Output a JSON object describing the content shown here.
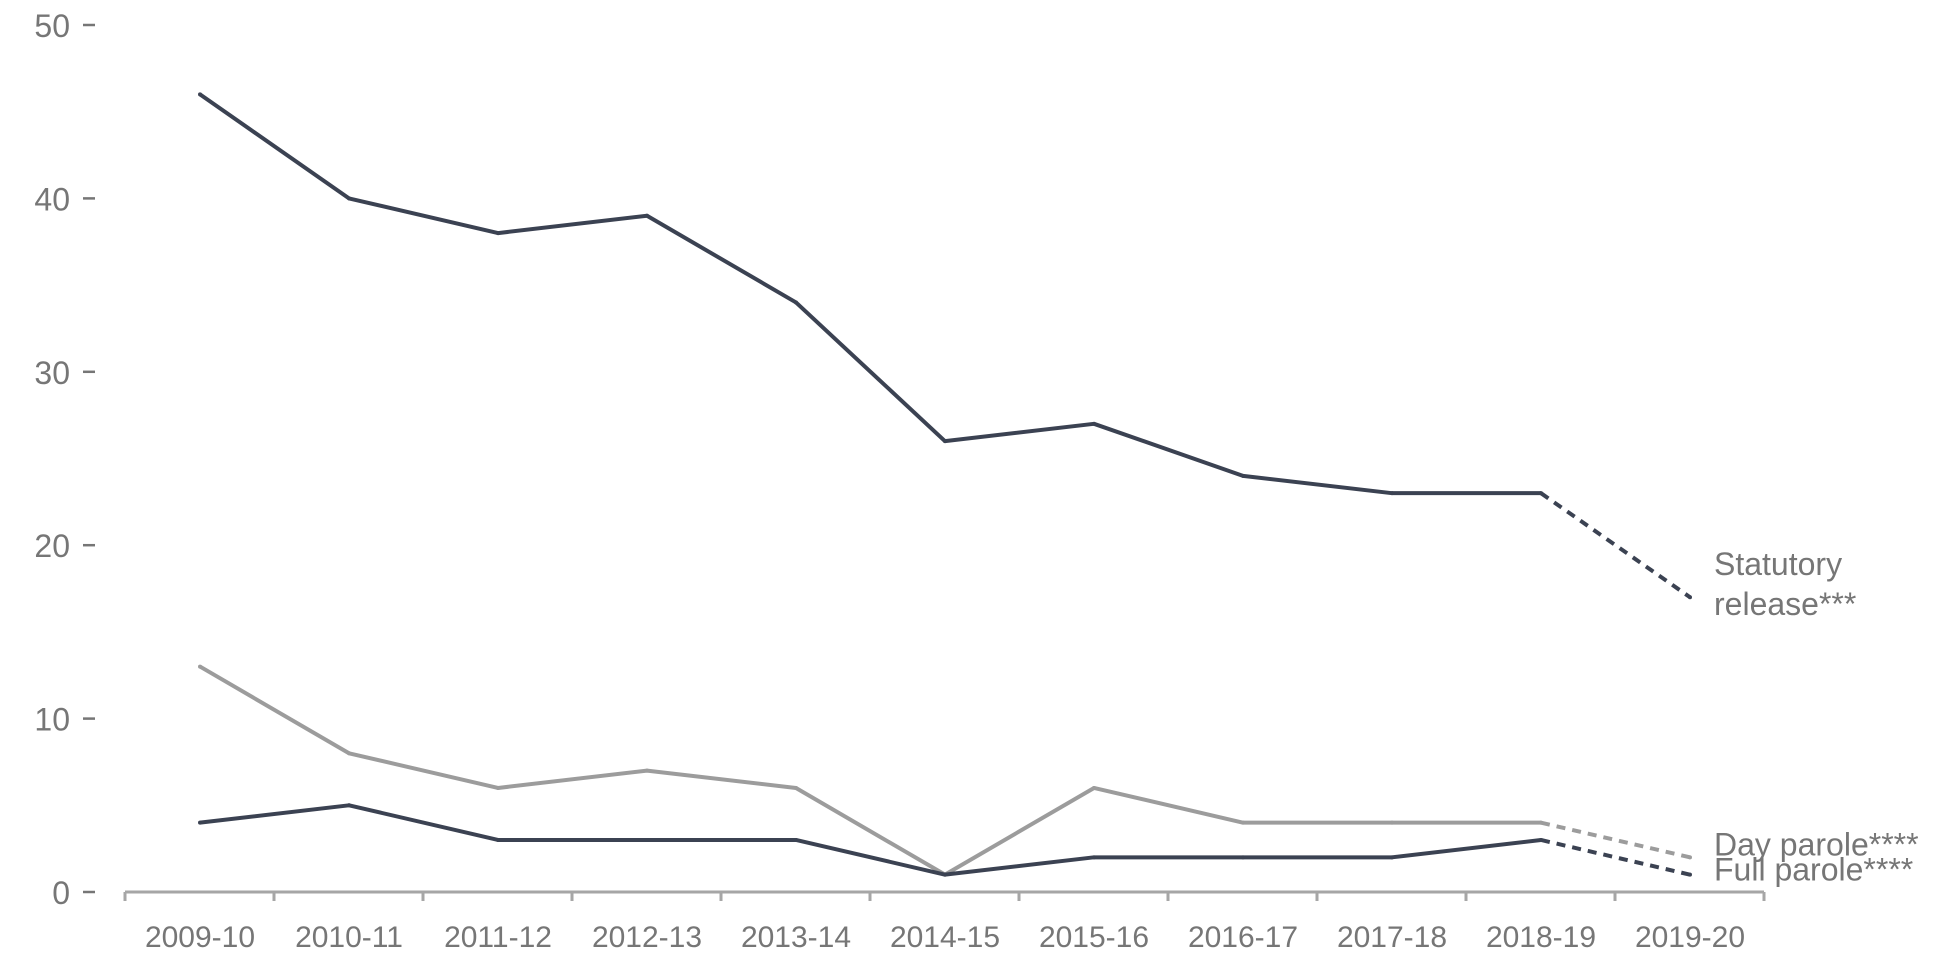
{
  "chart_data": {
    "type": "line",
    "title": "",
    "xlabel": "",
    "ylabel": "",
    "ylim": [
      0,
      50
    ],
    "yticks": [
      0,
      10,
      20,
      30,
      40,
      50
    ],
    "grid": false,
    "categories": [
      "2009-10",
      "2010-11",
      "2011-12",
      "2012-13",
      "2013-14",
      "2014-15",
      "2015-16",
      "2016-17",
      "2017-18",
      "2018-19",
      "2019-20"
    ],
    "series": [
      {
        "name": "Statutory release***",
        "label_lines": [
          "Statutory",
          "release***"
        ],
        "color": "#3b4252",
        "values": [
          46,
          40,
          38,
          39,
          34,
          26,
          27,
          24,
          23,
          23,
          17
        ],
        "dashed_last_segment": true
      },
      {
        "name": "Day parole****",
        "label_lines": [
          "Day parole****"
        ],
        "color": "#9c9c9c",
        "values": [
          13,
          8,
          6,
          7,
          6,
          1,
          6,
          4,
          4,
          4,
          2
        ],
        "dashed_last_segment": true
      },
      {
        "name": "Full parole****",
        "label_lines": [
          "Full parole****"
        ],
        "color": "#3b4252",
        "values": [
          4,
          5,
          3,
          3,
          3,
          1,
          2,
          2,
          2,
          3,
          1
        ],
        "dashed_last_segment": true
      }
    ],
    "legend": "inline-right-labels",
    "axis_color": "#a6a6a6",
    "text_color": "#767676"
  }
}
